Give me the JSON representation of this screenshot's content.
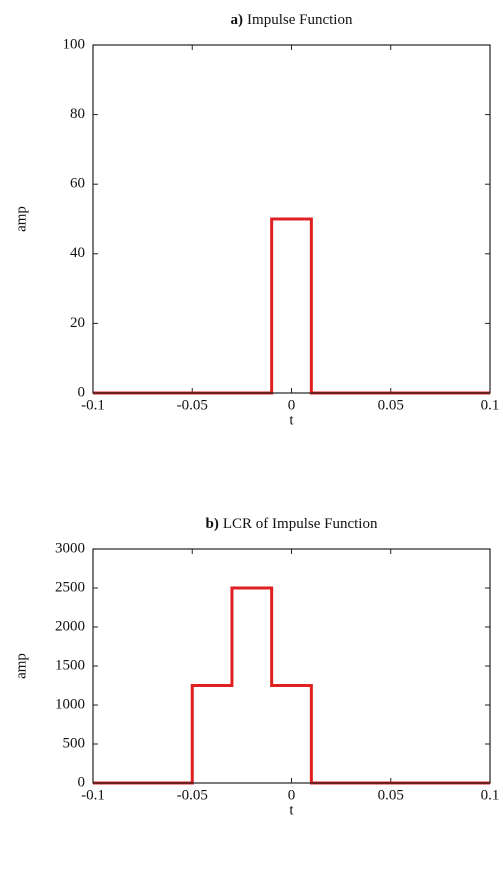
{
  "chart_data": [
    {
      "type": "line",
      "label": "a)",
      "title": "Impulse Function",
      "xlabel": "t",
      "ylabel": "amp",
      "x": [
        -0.1,
        -0.01,
        -0.01,
        0.01,
        0.01,
        0.1
      ],
      "series": [
        {
          "color": "#e02020",
          "values": [
            0,
            0,
            50,
            50,
            0,
            0
          ]
        }
      ],
      "xlim": [
        -0.1,
        0.1
      ],
      "xticks": [
        -0.1,
        -0.05,
        0,
        0.05,
        0.1
      ],
      "ylim": [
        0,
        100
      ],
      "yticks": [
        0,
        20,
        40,
        60,
        80,
        100
      ]
    },
    {
      "type": "line",
      "label": "b)",
      "title": "LCR of Impulse Function",
      "xlabel": "t",
      "ylabel": "amp",
      "x": [
        -0.1,
        -0.05,
        -0.05,
        -0.03,
        -0.03,
        -0.01,
        -0.01,
        0.01,
        0.01,
        0.1
      ],
      "series": [
        {
          "color": "#e02020",
          "values": [
            0,
            0,
            1250,
            1250,
            2500,
            2500,
            1250,
            1250,
            0,
            0
          ]
        }
      ],
      "xlim": [
        -0.1,
        0.1
      ],
      "xticks": [
        -0.1,
        -0.05,
        0,
        0.05,
        0.1
      ],
      "ylim": [
        0,
        3000
      ],
      "yticks": [
        0,
        500,
        1000,
        1500,
        2000,
        2500,
        3000
      ]
    }
  ]
}
